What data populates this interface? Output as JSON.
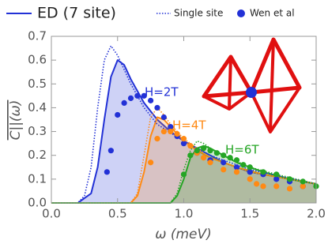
{
  "chart_data": {
    "type": "line",
    "xlabel": "ω (meV)",
    "ylabel": "C||(ω)",
    "xlim": [
      0,
      2.0
    ],
    "ylim": [
      0,
      0.7
    ],
    "xticks": [
      {
        "value": 0,
        "label": "0.0"
      },
      0.5,
      {
        "value": 1.0,
        "label": "1.0"
      },
      1.5,
      {
        "value": 2.0,
        "label": "2.0"
      }
    ],
    "yticks": [
      {
        "value": 0,
        "label": "0.0"
      },
      0.1,
      0.2,
      0.3,
      0.4,
      0.5,
      0.6,
      0.7
    ],
    "legend": "top",
    "annotations": [
      {
        "text": "H=2T",
        "color": "#2231d6"
      },
      {
        "text": "H=4T",
        "color": "#ff8a14"
      },
      {
        "text": "H=6T",
        "color": "#25a525"
      }
    ],
    "series": [
      {
        "name": "ED (7 site)",
        "style": "solid",
        "fill": true,
        "curves": [
          {
            "color": "#2231d6",
            "x": [
              0,
              0.2,
              0.3,
              0.35,
              0.4,
              0.45,
              0.5,
              0.55,
              0.6,
              0.7,
              0.8,
              0.9,
              1.0,
              1.1,
              1.2,
              1.3,
              1.4,
              1.5,
              1.6,
              1.8,
              2.0
            ],
            "values": [
              0,
              0,
              0.04,
              0.15,
              0.35,
              0.53,
              0.6,
              0.58,
              0.52,
              0.42,
              0.35,
              0.3,
              0.26,
              0.23,
              0.2,
              0.17,
              0.15,
              0.13,
              0.12,
              0.1,
              0.08
            ]
          },
          {
            "color": "#ff8a14",
            "x": [
              0,
              0.6,
              0.65,
              0.7,
              0.75,
              0.8,
              0.85,
              0.9,
              1.0,
              1.1,
              1.2,
              1.4,
              1.6,
              1.8,
              2.0
            ],
            "values": [
              0,
              0,
              0.03,
              0.13,
              0.28,
              0.36,
              0.35,
              0.32,
              0.26,
              0.22,
              0.19,
              0.15,
              0.12,
              0.1,
              0.08
            ]
          },
          {
            "color": "#25a525",
            "x": [
              0,
              0.9,
              0.95,
              1.0,
              1.05,
              1.1,
              1.15,
              1.2,
              1.3,
              1.4,
              1.5,
              1.6,
              1.8,
              2.0
            ],
            "values": [
              0,
              0,
              0.03,
              0.1,
              0.19,
              0.23,
              0.24,
              0.23,
              0.2,
              0.17,
              0.15,
              0.13,
              0.1,
              0.08
            ]
          }
        ]
      },
      {
        "name": "Single site",
        "style": "dotted",
        "fill": false,
        "curves": [
          {
            "color": "#2231d6",
            "x": [
              0,
              0.2,
              0.25,
              0.3,
              0.35,
              0.4,
              0.45,
              0.5,
              0.6,
              0.7,
              0.8,
              1.0,
              1.2,
              1.5,
              2.0
            ],
            "values": [
              0,
              0,
              0.03,
              0.15,
              0.4,
              0.6,
              0.66,
              0.62,
              0.5,
              0.4,
              0.33,
              0.26,
              0.2,
              0.14,
              0.08
            ]
          },
          {
            "color": "#ff8a14",
            "x": [
              0,
              0.6,
              0.65,
              0.7,
              0.75,
              0.8,
              0.85,
              0.9,
              1.0,
              1.2,
              1.5,
              2.0
            ],
            "values": [
              0,
              0,
              0.04,
              0.2,
              0.36,
              0.4,
              0.37,
              0.33,
              0.27,
              0.19,
              0.13,
              0.08
            ]
          },
          {
            "color": "#25a525",
            "x": [
              0,
              0.9,
              0.95,
              1.0,
              1.05,
              1.1,
              1.15,
              1.2,
              1.3,
              1.5,
              1.7,
              2.0
            ],
            "values": [
              0,
              0,
              0.04,
              0.14,
              0.22,
              0.26,
              0.25,
              0.23,
              0.2,
              0.15,
              0.12,
              0.08
            ]
          }
        ]
      },
      {
        "name": "Wen et al",
        "style": "dot",
        "fill": false,
        "curves": [
          {
            "color": "#2231d6",
            "x": [
              0.42,
              0.45,
              0.5,
              0.55,
              0.6,
              0.65,
              0.7,
              0.75,
              0.8,
              0.85,
              0.9,
              0.95,
              1.0,
              1.1,
              1.2,
              1.3,
              1.4,
              1.5,
              1.6,
              1.7,
              1.8,
              1.9
            ],
            "values": [
              0.13,
              0.22,
              0.37,
              0.42,
              0.44,
              0.45,
              0.45,
              0.43,
              0.4,
              0.36,
              0.32,
              0.28,
              0.25,
              0.21,
              0.18,
              0.17,
              0.15,
              0.13,
              0.12,
              0.1,
              0.09,
              0.07
            ]
          },
          {
            "color": "#ff8a14",
            "x": [
              0.75,
              0.8,
              0.85,
              0.9,
              0.95,
              1.0,
              1.05,
              1.1,
              1.15,
              1.2,
              1.3,
              1.4,
              1.5,
              1.55,
              1.6,
              1.7,
              1.8,
              1.9
            ],
            "values": [
              0.17,
              0.27,
              0.3,
              0.3,
              0.29,
              0.27,
              0.24,
              0.21,
              0.19,
              0.17,
              0.14,
              0.13,
              0.1,
              0.08,
              0.07,
              0.07,
              0.06,
              0.07
            ]
          },
          {
            "color": "#25a525",
            "x": [
              1.0,
              1.05,
              1.1,
              1.15,
              1.2,
              1.25,
              1.3,
              1.35,
              1.4,
              1.45,
              1.5,
              1.6,
              1.7,
              1.8,
              1.9,
              2.0
            ],
            "values": [
              0.12,
              0.2,
              0.22,
              0.23,
              0.22,
              0.21,
              0.2,
              0.19,
              0.18,
              0.16,
              0.15,
              0.13,
              0.12,
              0.1,
              0.09,
              0.07
            ]
          }
        ]
      }
    ]
  }
}
